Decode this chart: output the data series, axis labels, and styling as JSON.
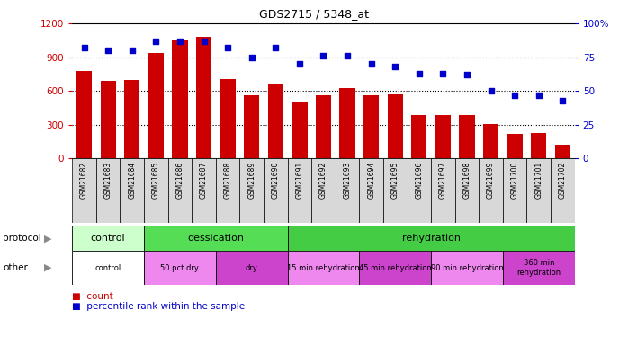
{
  "title": "GDS2715 / 5348_at",
  "samples": [
    "GSM21682",
    "GSM21683",
    "GSM21684",
    "GSM21685",
    "GSM21686",
    "GSM21687",
    "GSM21688",
    "GSM21689",
    "GSM21690",
    "GSM21691",
    "GSM21692",
    "GSM21693",
    "GSM21694",
    "GSM21695",
    "GSM21696",
    "GSM21697",
    "GSM21698",
    "GSM21699",
    "GSM21700",
    "GSM21701",
    "GSM21702"
  ],
  "counts": [
    780,
    690,
    700,
    940,
    1050,
    1080,
    710,
    560,
    660,
    500,
    560,
    630,
    560,
    570,
    390,
    390,
    390,
    310,
    220,
    230,
    120
  ],
  "percentiles": [
    82,
    80,
    80,
    87,
    87,
    87,
    82,
    75,
    82,
    70,
    76,
    76,
    70,
    68,
    63,
    63,
    62,
    50,
    47,
    47,
    43
  ],
  "bar_color": "#cc0000",
  "dot_color": "#0000cc",
  "ylim_left": [
    0,
    1200
  ],
  "ylim_right": [
    0,
    100
  ],
  "yticks_left": [
    0,
    300,
    600,
    900,
    1200
  ],
  "yticks_right": [
    0,
    25,
    50,
    75,
    100
  ],
  "protocol_groups": [
    {
      "label": "control",
      "start": 0,
      "end": 3,
      "color": "#ccffcc"
    },
    {
      "label": "dessication",
      "start": 3,
      "end": 9,
      "color": "#55dd55"
    },
    {
      "label": "rehydration",
      "start": 9,
      "end": 21,
      "color": "#44cc44"
    }
  ],
  "other_groups": [
    {
      "label": "control",
      "start": 0,
      "end": 3,
      "color": "#ffffff"
    },
    {
      "label": "50 pct dry",
      "start": 3,
      "end": 6,
      "color": "#ee88ee"
    },
    {
      "label": "dry",
      "start": 6,
      "end": 9,
      "color": "#cc44cc"
    },
    {
      "label": "15 min rehydration",
      "start": 9,
      "end": 12,
      "color": "#ee88ee"
    },
    {
      "label": "45 min rehydration",
      "start": 12,
      "end": 15,
      "color": "#cc44cc"
    },
    {
      "label": "90 min rehydration",
      "start": 15,
      "end": 18,
      "color": "#ee88ee"
    },
    {
      "label": "360 min\nrehydration",
      "start": 18,
      "end": 21,
      "color": "#cc44cc"
    }
  ],
  "legend_count_label": "count",
  "legend_pct_label": "percentile rank within the sample",
  "protocol_label": "protocol",
  "other_label": "other"
}
